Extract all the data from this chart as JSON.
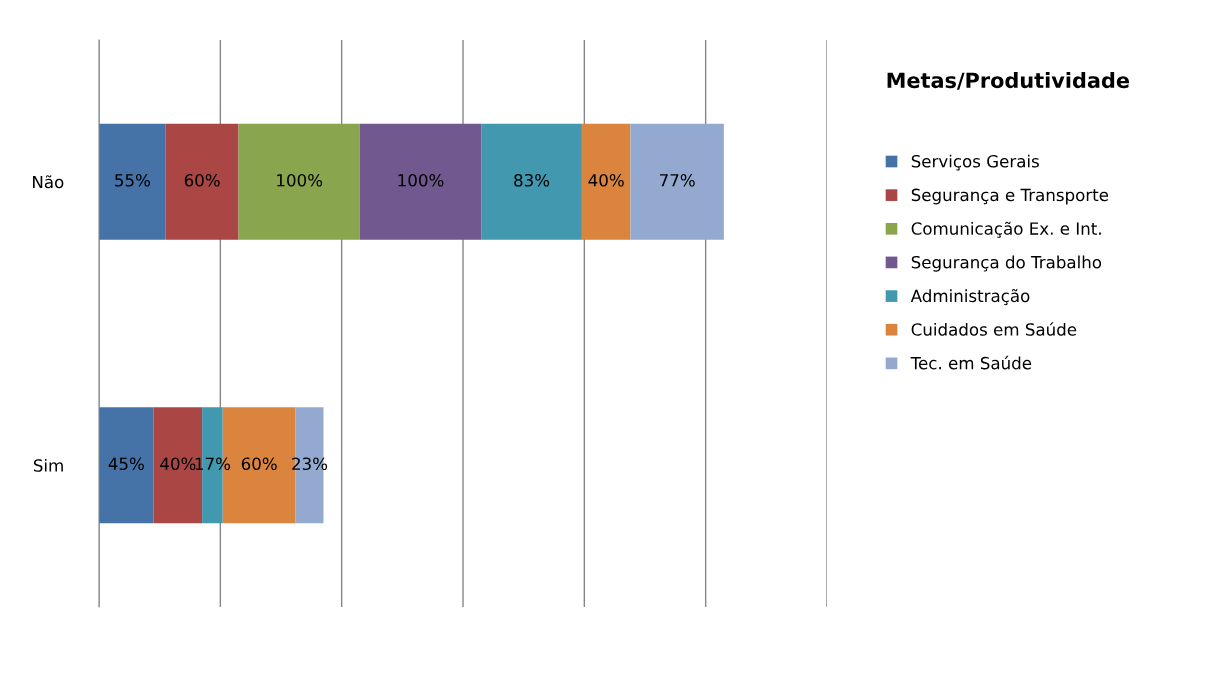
{
  "chart_data": {
    "type": "bar",
    "orientation": "horizontal",
    "stacked": true,
    "legend_title": "Metas/Produtividade",
    "categories": [
      "Não",
      "Sim"
    ],
    "series": [
      {
        "name": "Serviços Gerais",
        "color": "#4572a7",
        "values": [
          55,
          45
        ],
        "value_labels": [
          "55%",
          "45%"
        ]
      },
      {
        "name": "Segurança e Transporte",
        "color": "#aa4643",
        "values": [
          60,
          40
        ],
        "value_labels": [
          "60%",
          "40%"
        ]
      },
      {
        "name": "Comunicação Ex. e Int.",
        "color": "#89a54e",
        "values": [
          100,
          null
        ],
        "value_labels": [
          "100%",
          null
        ]
      },
      {
        "name": "Segurança do Trabalho",
        "color": "#71588f",
        "values": [
          100,
          null
        ],
        "value_labels": [
          "100%",
          null
        ]
      },
      {
        "name": "Administração",
        "color": "#4198af",
        "values": [
          83,
          17
        ],
        "value_labels": [
          "83%",
          "17%"
        ]
      },
      {
        "name": "Cuidados em Saúde",
        "color": "#db843d",
        "values": [
          40,
          60
        ],
        "value_labels": [
          "40%",
          "60%"
        ]
      },
      {
        "name": "Tec. em Saúde",
        "color": "#93a9cf",
        "values": [
          77,
          23
        ],
        "value_labels": [
          "77%",
          "23%"
        ]
      }
    ],
    "xlim": [
      0,
      600
    ],
    "xticks": [
      {
        "value": 0,
        "label": null
      },
      {
        "value": 100,
        "label": null
      },
      {
        "value": 200,
        "label": null
      },
      {
        "value": 300,
        "label": null
      },
      {
        "value": 400,
        "label": null
      },
      {
        "value": 500,
        "label": null
      },
      {
        "value": 600,
        "label": null
      }
    ],
    "grid": "x",
    "legend": "right",
    "tick_labels": "y"
  }
}
